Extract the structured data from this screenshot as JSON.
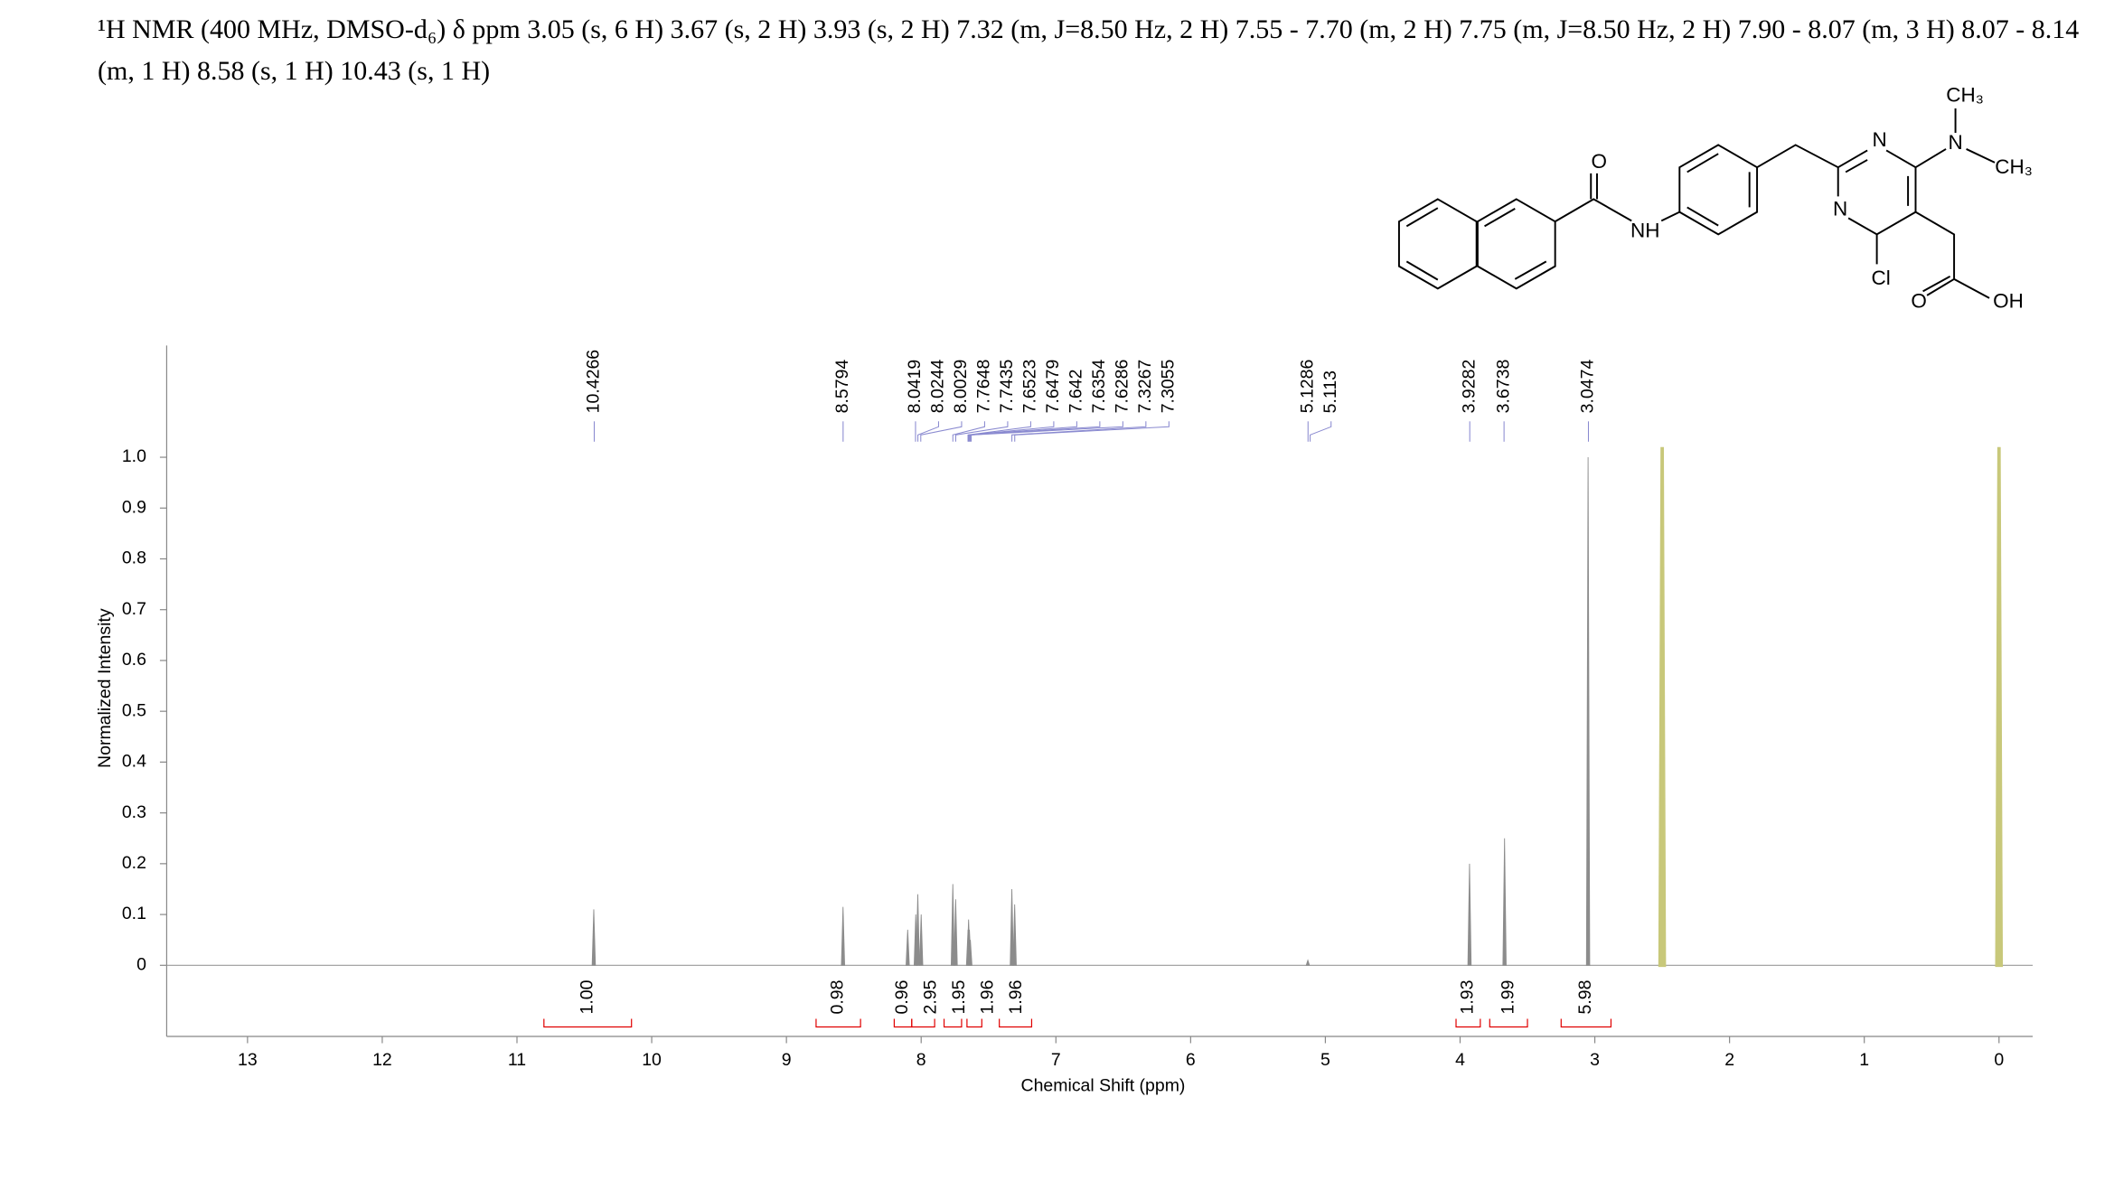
{
  "chart_data": {
    "type": "spectrum",
    "title": "¹H NMR (400 MHz, DMSO-d₆) δ ppm 3.05 (s, 6 H) 3.67 (s, 2 H) 3.93 (s, 2 H) 7.32 (m, J=8.50 Hz, 2 H) 7.55 - 7.70 (m, 2 H) 7.75 (m, J=8.50 Hz, 2 H) 7.90 - 8.07 (m, 3 H) 8.07 - 8.14 (m, 1 H) 8.58 (s, 1 H) 10.43 (s, 1 H)",
    "x_label": "Chemical Shift (ppm)",
    "y_label": "Normalized Intensity",
    "xlim": [
      13.6,
      -0.25
    ],
    "ylim": [
      -0.14,
      1.22
    ],
    "xticks": [
      13,
      12,
      11,
      10,
      9,
      8,
      7,
      6,
      5,
      4,
      3,
      2,
      1,
      0
    ],
    "yticks": [
      0,
      0.1,
      0.2,
      0.3,
      0.4,
      0.5,
      0.6,
      0.7,
      0.8,
      0.9,
      {
        "value": 1,
        "label": "1.0"
      }
    ],
    "series": [
      {
        "color": "#8c8c8c",
        "x": [
          10.43,
          8.58,
          8.1,
          8.04,
          8.025,
          8.0,
          7.765,
          7.744,
          7.652,
          7.648,
          7.642,
          7.635,
          7.327,
          7.306,
          5.13,
          3.93,
          3.67,
          3.05
        ],
        "values": [
          0.11,
          0.115,
          0.07,
          0.1,
          0.14,
          0.1,
          0.16,
          0.13,
          0.07,
          0.09,
          0.07,
          0.05,
          0.15,
          0.12,
          0.01,
          0.2,
          0.25,
          1.0
        ]
      },
      {
        "color": "#c8c87a",
        "x": [
          2.5,
          0.0
        ],
        "values": [
          1.02,
          1.02
        ]
      }
    ],
    "peak_labels": [
      10.4266,
      8.5794,
      8.0419,
      8.0244,
      8.0029,
      7.7648,
      7.7435,
      7.6523,
      7.6479,
      7.642,
      7.6354,
      7.6286,
      7.3267,
      7.3055,
      5.1286,
      5.113,
      3.9282,
      3.6738,
      3.0474
    ],
    "peak_label_color": "#1a1a8c",
    "integrals": [
      {
        "from": 10.8,
        "to": 10.15,
        "label": "1.00"
      },
      {
        "from": 8.78,
        "to": 8.45,
        "label": "0.98"
      },
      {
        "from": 8.2,
        "to": 8.07,
        "label": "0.96"
      },
      {
        "from": 8.07,
        "to": 7.9,
        "label": "2.95"
      },
      {
        "from": 7.83,
        "to": 7.7,
        "label": "1.95"
      },
      {
        "from": 7.66,
        "to": 7.55,
        "label": "1.96"
      },
      {
        "from": 7.42,
        "to": 7.18,
        "label": "1.96"
      },
      {
        "from": 4.03,
        "to": 3.85,
        "label": "1.93"
      },
      {
        "from": 3.78,
        "to": 3.5,
        "label": "1.99"
      },
      {
        "from": 3.25,
        "to": 2.88,
        "label": "5.98"
      }
    ],
    "integral_color": "#e00000",
    "structure_labels": [
      "O",
      "NH",
      "N",
      "N",
      "N",
      "CH₃",
      "CH₃",
      "Cl",
      "O",
      "OH"
    ]
  }
}
